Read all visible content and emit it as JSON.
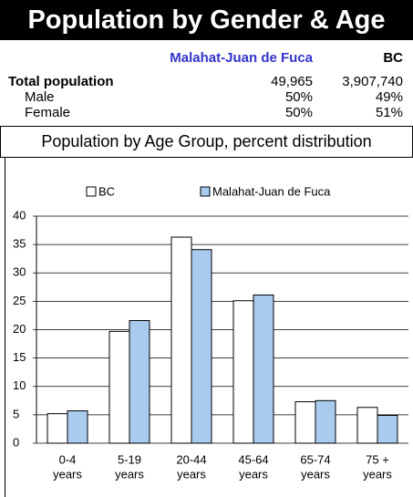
{
  "header": {
    "title": "Population by Gender & Age"
  },
  "table": {
    "columns": [
      "Malahat-Juan de Fuca",
      "BC"
    ],
    "rows": [
      [
        "Total population",
        "49,965",
        "3,907,740"
      ],
      [
        "Male",
        "50%",
        "49%"
      ],
      [
        "Female",
        "50%",
        "51%"
      ]
    ]
  },
  "chart_data": {
    "type": "bar",
    "title": "Population by Age Group, percent distribution",
    "categories": [
      [
        "0-4",
        "years"
      ],
      [
        "5-19",
        "years"
      ],
      [
        "20-44",
        "years"
      ],
      [
        "45-64",
        "years"
      ],
      [
        "65-74",
        "years"
      ],
      [
        "75 +",
        "years"
      ]
    ],
    "series": [
      {
        "name": "BC",
        "color": "#ffffff",
        "values": [
          5.2,
          19.7,
          36.3,
          25.1,
          7.3,
          6.3
        ]
      },
      {
        "name": "Malahat-Juan de Fuca",
        "color": "#a9cbee",
        "values": [
          5.7,
          21.6,
          34.1,
          26.1,
          7.5,
          4.9
        ]
      }
    ],
    "ylim": [
      0,
      40
    ],
    "yticks": [
      0,
      5,
      10,
      15,
      20,
      25,
      30,
      35,
      40
    ],
    "grid": true
  }
}
